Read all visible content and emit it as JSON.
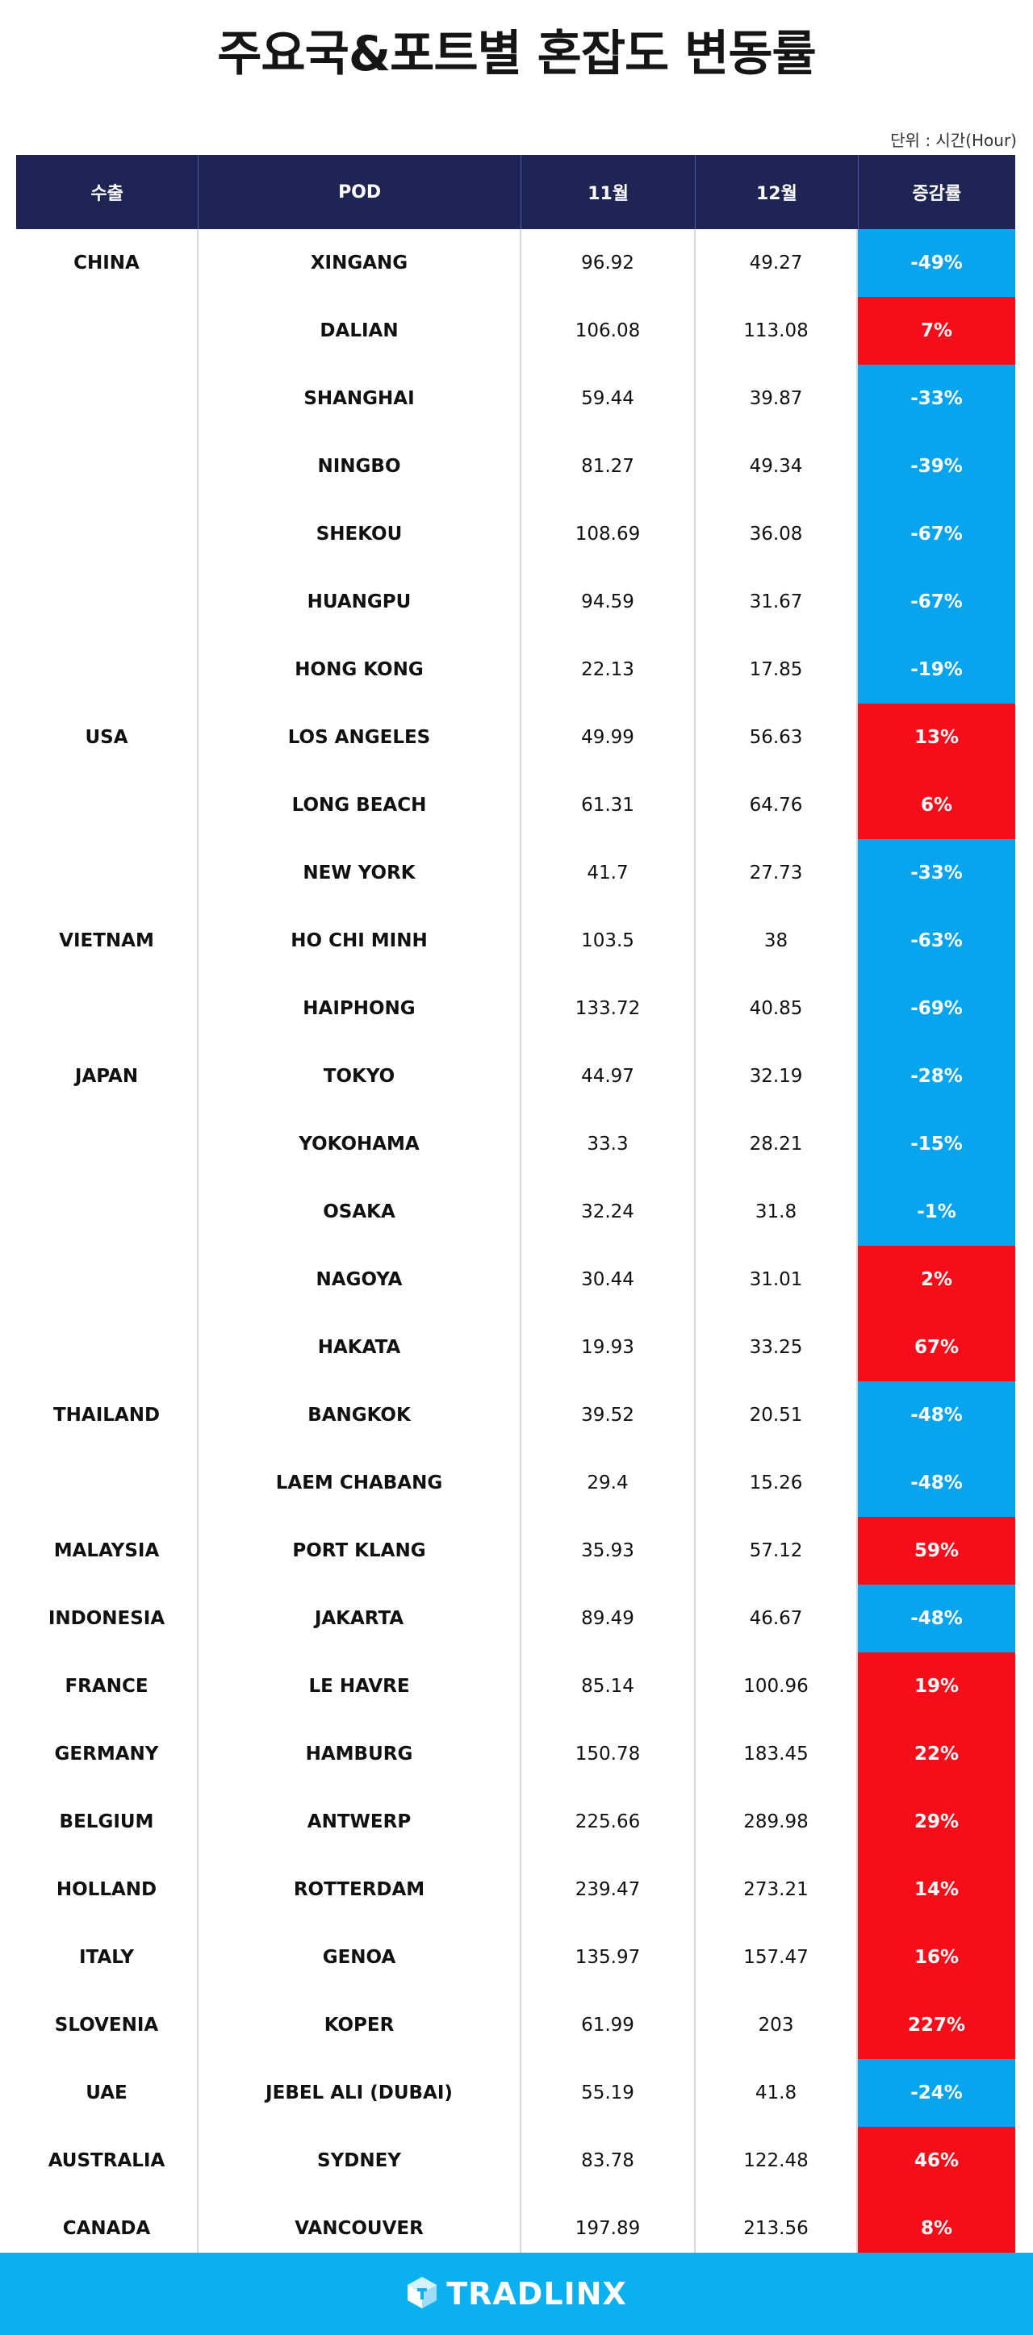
{
  "title": "주요국&포트별 혼잡도 변동률",
  "unit_note": "단위 : 시간(Hour)",
  "headers": {
    "country": "수출",
    "pod": "POD",
    "nov": "11월",
    "dec": "12월",
    "change": "증감률"
  },
  "colors": {
    "header_bg": "#1e2453",
    "decrease": "#08a5ee",
    "increase": "#f50e1a",
    "footer_bg": "#0ab0f0"
  },
  "rows": [
    {
      "country": "CHINA",
      "pod": "XINGANG",
      "nov": "96.92",
      "dec": "49.27",
      "change": "-49%",
      "dir": "neg"
    },
    {
      "country": "",
      "pod": "DALIAN",
      "nov": "106.08",
      "dec": "113.08",
      "change": "7%",
      "dir": "pos"
    },
    {
      "country": "",
      "pod": "SHANGHAI",
      "nov": "59.44",
      "dec": "39.87",
      "change": "-33%",
      "dir": "neg"
    },
    {
      "country": "",
      "pod": "NINGBO",
      "nov": "81.27",
      "dec": "49.34",
      "change": "-39%",
      "dir": "neg"
    },
    {
      "country": "",
      "pod": "SHEKOU",
      "nov": "108.69",
      "dec": "36.08",
      "change": "-67%",
      "dir": "neg"
    },
    {
      "country": "",
      "pod": "HUANGPU",
      "nov": "94.59",
      "dec": "31.67",
      "change": "-67%",
      "dir": "neg"
    },
    {
      "country": "",
      "pod": "HONG KONG",
      "nov": "22.13",
      "dec": "17.85",
      "change": "-19%",
      "dir": "neg"
    },
    {
      "country": "USA",
      "pod": "LOS ANGELES",
      "nov": "49.99",
      "dec": "56.63",
      "change": "13%",
      "dir": "pos"
    },
    {
      "country": "",
      "pod": "LONG BEACH",
      "nov": "61.31",
      "dec": "64.76",
      "change": "6%",
      "dir": "pos"
    },
    {
      "country": "",
      "pod": "NEW YORK",
      "nov": "41.7",
      "dec": "27.73",
      "change": "-33%",
      "dir": "neg"
    },
    {
      "country": "VIETNAM",
      "pod": "HO CHI MINH",
      "nov": "103.5",
      "dec": "38",
      "change": "-63%",
      "dir": "neg"
    },
    {
      "country": "",
      "pod": "HAIPHONG",
      "nov": "133.72",
      "dec": "40.85",
      "change": "-69%",
      "dir": "neg"
    },
    {
      "country": "JAPAN",
      "pod": "TOKYO",
      "nov": "44.97",
      "dec": "32.19",
      "change": "-28%",
      "dir": "neg"
    },
    {
      "country": "",
      "pod": "YOKOHAMA",
      "nov": "33.3",
      "dec": "28.21",
      "change": "-15%",
      "dir": "neg"
    },
    {
      "country": "",
      "pod": "OSAKA",
      "nov": "32.24",
      "dec": "31.8",
      "change": "-1%",
      "dir": "neg"
    },
    {
      "country": "",
      "pod": "NAGOYA",
      "nov": "30.44",
      "dec": "31.01",
      "change": "2%",
      "dir": "pos"
    },
    {
      "country": "",
      "pod": "HAKATA",
      "nov": "19.93",
      "dec": "33.25",
      "change": "67%",
      "dir": "pos"
    },
    {
      "country": "THAILAND",
      "pod": "BANGKOK",
      "nov": "39.52",
      "dec": "20.51",
      "change": "-48%",
      "dir": "neg"
    },
    {
      "country": "",
      "pod": "LAEM CHABANG",
      "nov": "29.4",
      "dec": "15.26",
      "change": "-48%",
      "dir": "neg"
    },
    {
      "country": "MALAYSIA",
      "pod": "PORT KLANG",
      "nov": "35.93",
      "dec": "57.12",
      "change": "59%",
      "dir": "pos"
    },
    {
      "country": "INDONESIA",
      "pod": "JAKARTA",
      "nov": "89.49",
      "dec": "46.67",
      "change": "-48%",
      "dir": "neg"
    },
    {
      "country": "FRANCE",
      "pod": "LE HAVRE",
      "nov": "85.14",
      "dec": "100.96",
      "change": "19%",
      "dir": "pos"
    },
    {
      "country": "GERMANY",
      "pod": "HAMBURG",
      "nov": "150.78",
      "dec": "183.45",
      "change": "22%",
      "dir": "pos"
    },
    {
      "country": "BELGIUM",
      "pod": "ANTWERP",
      "nov": "225.66",
      "dec": "289.98",
      "change": "29%",
      "dir": "pos"
    },
    {
      "country": "HOLLAND",
      "pod": "ROTTERDAM",
      "nov": "239.47",
      "dec": "273.21",
      "change": "14%",
      "dir": "pos"
    },
    {
      "country": "ITALY",
      "pod": "GENOA",
      "nov": "135.97",
      "dec": "157.47",
      "change": "16%",
      "dir": "pos"
    },
    {
      "country": "SLOVENIA",
      "pod": "KOPER",
      "nov": "61.99",
      "dec": "203",
      "change": "227%",
      "dir": "pos"
    },
    {
      "country": "UAE",
      "pod": "JEBEL ALI (DUBAI)",
      "nov": "55.19",
      "dec": "41.8",
      "change": "-24%",
      "dir": "neg"
    },
    {
      "country": "AUSTRALIA",
      "pod": "SYDNEY",
      "nov": "83.78",
      "dec": "122.48",
      "change": "46%",
      "dir": "pos"
    },
    {
      "country": "CANADA",
      "pod": "VANCOUVER",
      "nov": "197.89",
      "dec": "213.56",
      "change": "8%",
      "dir": "pos"
    }
  ],
  "footer": {
    "logo_icon": "tradlinx-cube-icon",
    "brand": "TRADLINX"
  }
}
